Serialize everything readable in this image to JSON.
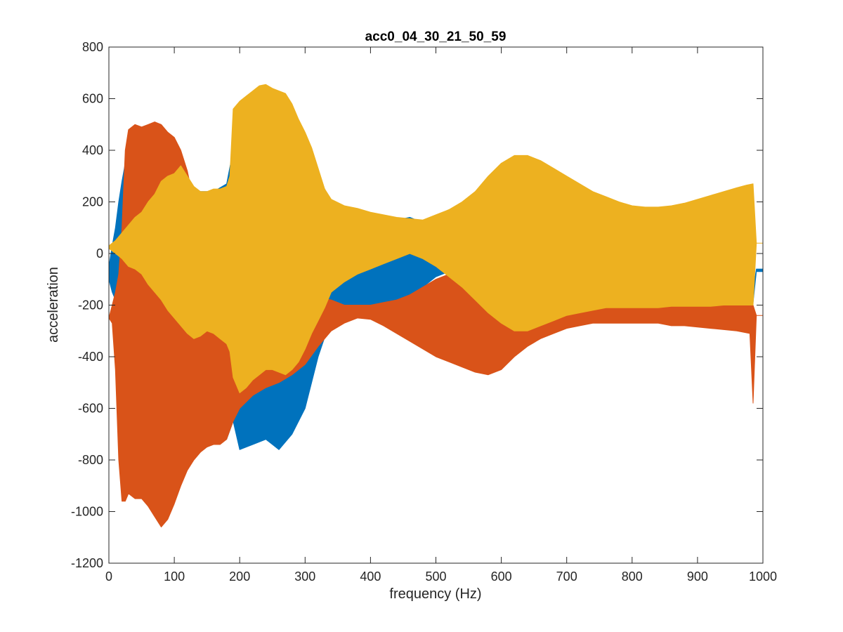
{
  "chart_data": {
    "type": "area",
    "title": "acc0_04_30_21_50_59",
    "xlabel": "frequency (Hz)",
    "ylabel": "acceleration",
    "xlim": [
      0,
      1000
    ],
    "ylim": [
      -1200,
      800
    ],
    "xticks": [
      0,
      100,
      200,
      300,
      400,
      500,
      600,
      700,
      800,
      900,
      1000
    ],
    "yticks": [
      -1200,
      -1000,
      -800,
      -600,
      -400,
      -200,
      0,
      200,
      400,
      600,
      800
    ],
    "grid": false,
    "legend": "none",
    "series_envelopes": [
      {
        "color": "#0072BD",
        "x": [
          0,
          5,
          10,
          15,
          20,
          25,
          30,
          40,
          60,
          80,
          100,
          120,
          140,
          160,
          180,
          190,
          200,
          220,
          240,
          260,
          280,
          300,
          320,
          340,
          360,
          380,
          400,
          420,
          440,
          460,
          480,
          500,
          520,
          540,
          560,
          580,
          600,
          620,
          640,
          660,
          680,
          700,
          720,
          740,
          760,
          780,
          800,
          820,
          840,
          860,
          880,
          900,
          920,
          940,
          960,
          975,
          985,
          990,
          1000
        ],
        "upper": [
          -50,
          30,
          100,
          200,
          280,
          350,
          380,
          360,
          310,
          290,
          300,
          270,
          240,
          240,
          270,
          400,
          500,
          560,
          600,
          580,
          500,
          390,
          300,
          200,
          175,
          160,
          150,
          140,
          130,
          140,
          120,
          100,
          70,
          40,
          20,
          10,
          0,
          -10,
          -20,
          -30,
          -40,
          -50,
          -60,
          -70,
          -80,
          -90,
          -90,
          -90,
          -95,
          -100,
          -105,
          -110,
          -120,
          -125,
          -130,
          -140,
          -140,
          -60,
          -60
        ],
        "lower": [
          -100,
          -150,
          -180,
          -200,
          -280,
          -350,
          -400,
          -500,
          -600,
          -680,
          -700,
          -720,
          -730,
          -740,
          -720,
          -650,
          -760,
          -740,
          -720,
          -760,
          -700,
          -600,
          -400,
          -250,
          -210,
          -205,
          -230,
          -250,
          -230,
          -180,
          -130,
          -90,
          -70,
          -60,
          -80,
          -110,
          -120,
          -140,
          -160,
          -180,
          -200,
          -215,
          -215,
          -210,
          -205,
          -200,
          -200,
          -200,
          -205,
          -210,
          -215,
          -220,
          -220,
          -215,
          -200,
          -200,
          -190,
          -70,
          -70
        ]
      },
      {
        "color": "#D95319",
        "x": [
          0,
          5,
          10,
          15,
          20,
          25,
          30,
          40,
          50,
          60,
          70,
          80,
          90,
          100,
          110,
          120,
          130,
          140,
          150,
          160,
          170,
          180,
          190,
          200,
          220,
          240,
          260,
          280,
          300,
          320,
          340,
          360,
          380,
          400,
          420,
          440,
          460,
          480,
          500,
          520,
          540,
          560,
          580,
          600,
          620,
          640,
          660,
          680,
          700,
          720,
          740,
          760,
          780,
          800,
          820,
          840,
          860,
          880,
          900,
          920,
          940,
          960,
          980,
          985,
          990,
          1000
        ],
        "upper": [
          -250,
          -200,
          -150,
          -80,
          100,
          400,
          480,
          500,
          490,
          500,
          510,
          500,
          470,
          450,
          400,
          320,
          200,
          130,
          0,
          -50,
          -100,
          -140,
          -160,
          -170,
          -170,
          -160,
          -155,
          -160,
          -170,
          -170,
          -180,
          -200,
          -200,
          -200,
          -190,
          -180,
          -160,
          -130,
          -100,
          -80,
          -60,
          -70,
          -90,
          -110,
          -140,
          -170,
          -190,
          -200,
          -200,
          -200,
          -200,
          -200,
          -200,
          -200,
          -200,
          -200,
          -200,
          -200,
          -200,
          -200,
          -200,
          -200,
          -200,
          -200,
          -240,
          -240
        ],
        "lower": [
          -250,
          -270,
          -450,
          -800,
          -960,
          -960,
          -930,
          -950,
          -950,
          -980,
          -1020,
          -1060,
          -1030,
          -970,
          -900,
          -840,
          -800,
          -770,
          -750,
          -740,
          -740,
          -720,
          -650,
          -600,
          -550,
          -520,
          -500,
          -470,
          -430,
          -360,
          -300,
          -270,
          -250,
          -255,
          -280,
          -310,
          -340,
          -370,
          -400,
          -420,
          -440,
          -460,
          -470,
          -450,
          -400,
          -360,
          -330,
          -310,
          -290,
          -280,
          -270,
          -270,
          -270,
          -270,
          -270,
          -270,
          -280,
          -280,
          -285,
          -290,
          -295,
          -300,
          -310,
          -580,
          -240,
          -240
        ]
      },
      {
        "color": "#EDB120",
        "x": [
          0,
          5,
          10,
          20,
          30,
          40,
          50,
          60,
          70,
          80,
          90,
          100,
          110,
          120,
          130,
          140,
          150,
          160,
          170,
          180,
          185,
          190,
          200,
          210,
          220,
          230,
          240,
          250,
          260,
          270,
          280,
          290,
          300,
          310,
          320,
          330,
          340,
          360,
          380,
          400,
          420,
          440,
          460,
          480,
          500,
          520,
          540,
          560,
          580,
          600,
          620,
          640,
          660,
          680,
          700,
          720,
          740,
          760,
          780,
          800,
          820,
          840,
          860,
          880,
          900,
          920,
          940,
          960,
          975,
          985,
          990,
          1000
        ],
        "upper": [
          30,
          40,
          50,
          80,
          110,
          140,
          160,
          200,
          230,
          280,
          300,
          310,
          340,
          300,
          260,
          240,
          240,
          250,
          250,
          260,
          300,
          560,
          590,
          610,
          630,
          650,
          655,
          640,
          630,
          620,
          580,
          520,
          470,
          410,
          330,
          250,
          210,
          185,
          175,
          160,
          150,
          140,
          135,
          130,
          150,
          170,
          200,
          240,
          300,
          350,
          380,
          380,
          360,
          330,
          300,
          270,
          240,
          220,
          200,
          185,
          180,
          180,
          185,
          195,
          210,
          225,
          240,
          255,
          265,
          270,
          40,
          40
        ],
        "lower": [
          20,
          10,
          0,
          -20,
          -50,
          -60,
          -80,
          -120,
          -150,
          -180,
          -220,
          -250,
          -280,
          -310,
          -330,
          -320,
          -300,
          -310,
          -330,
          -350,
          -380,
          -480,
          -540,
          -520,
          -490,
          -470,
          -450,
          -450,
          -460,
          -470,
          -450,
          -420,
          -370,
          -310,
          -260,
          -210,
          -150,
          -110,
          -80,
          -60,
          -40,
          -20,
          0,
          -20,
          -50,
          -90,
          -130,
          -180,
          -230,
          -270,
          -300,
          -300,
          -280,
          -260,
          -240,
          -230,
          -220,
          -210,
          -210,
          -210,
          -210,
          -210,
          -205,
          -205,
          -205,
          -205,
          -200,
          -200,
          -200,
          -200,
          40,
          40
        ]
      }
    ]
  }
}
